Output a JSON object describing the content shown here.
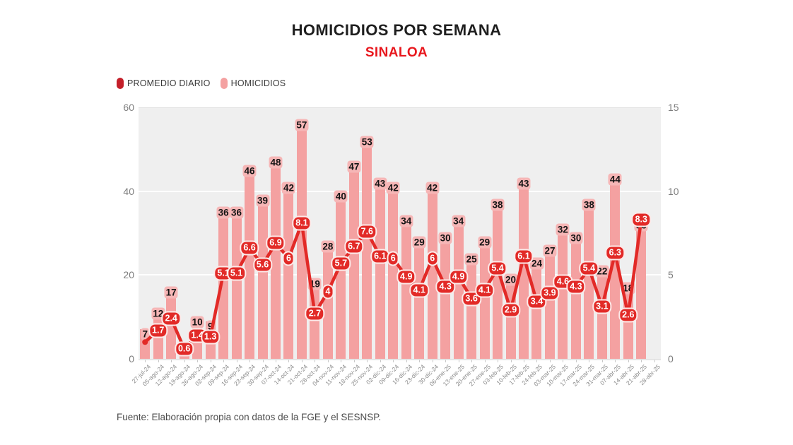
{
  "header": {
    "title": "HOMICIDIOS POR SEMANA",
    "subtitle": "SINALOA"
  },
  "legend": {
    "items": [
      {
        "label": "PROMEDIO DIARIO",
        "color": "#c4202a"
      },
      {
        "label": "HOMICIDIOS",
        "color": "#f4a1a1"
      }
    ]
  },
  "footer": {
    "source": "Fuente: Elaboración propia con datos de la FGE y el SESNSP."
  },
  "colors": {
    "title": "#1f1f1f",
    "subtitle_red": "#e8171d",
    "bar_fill": "#f4a1a1",
    "bar_label_bg": "#f6b6b6",
    "line_red": "#e22a27",
    "plot_background": "#efefef",
    "gridline": "#ffffff",
    "axis_text": "#7d7d7d"
  },
  "chart_data": {
    "type": "bar+line",
    "title": "HOMICIDIOS POR SEMANA",
    "subtitle": "SINALOA",
    "categories": [
      "27-jul-24",
      "05-ago-24",
      "12-ago-24",
      "19-ago-24",
      "26-ago-24",
      "02-sep-24",
      "09-sep-24",
      "16-sep-24",
      "23-sep-24",
      "30-sep-24",
      "07-oct-24",
      "14-oct-24",
      "21-oct-24",
      "28-oct-24",
      "04-nov-24",
      "11-nov-24",
      "18-nov-24",
      "25-nov-24",
      "02-dic-24",
      "09-dic-24",
      "16-dic-24",
      "23-dic-24",
      "30-dic-24",
      "06-ene-25",
      "13-ene-25",
      "20-ene-25",
      "27-ene-25",
      "03-feb-25",
      "10-feb-25",
      "17-feb-25",
      "24-feb-25",
      "03-mar-25",
      "10-mar-25",
      "17-mar-25",
      "24-mar-25",
      "31-mar-25",
      "07-abr-25",
      "14-abr-25",
      "21-abr-25",
      "28-abr-25"
    ],
    "series": [
      {
        "name": "HOMICIDIOS",
        "type": "bar",
        "axis": "left",
        "color": "#f4a1a1",
        "values": [
          7,
          12,
          17,
          4,
          10,
          9,
          36,
          36,
          46,
          39,
          48,
          42,
          57,
          19,
          28,
          40,
          47,
          53,
          43,
          42,
          34,
          29,
          42,
          30,
          34,
          25,
          29,
          38,
          20,
          43,
          24,
          27,
          32,
          30,
          38,
          22,
          44,
          18,
          33,
          null
        ],
        "labels": [
          "7",
          "12",
          "17",
          "",
          "10",
          "9",
          "36",
          "36",
          "46",
          "39",
          "48",
          "42",
          "57",
          "19",
          "28",
          "40",
          "47",
          "53",
          "43",
          "42",
          "34",
          "29",
          "42",
          "30",
          "34",
          "25",
          "29",
          "38",
          "20",
          "43",
          "24",
          "27",
          "32",
          "30",
          "38",
          "22",
          "44",
          "18",
          "33",
          ""
        ]
      },
      {
        "name": "PROMEDIO DIARIO",
        "type": "line",
        "axis": "right",
        "color": "#e22a27",
        "values": [
          1,
          1.7,
          2.4,
          0.6,
          1.4,
          1.3,
          5.1,
          5.1,
          6.6,
          5.6,
          6.9,
          6,
          8.1,
          2.7,
          4,
          5.7,
          6.7,
          7.6,
          6.1,
          6,
          4.9,
          4.1,
          6,
          4.3,
          4.9,
          3.6,
          4.1,
          5.4,
          2.9,
          6.1,
          3.4,
          3.9,
          4.6,
          4.3,
          5.4,
          3.1,
          6.3,
          2.6,
          8.3,
          null
        ],
        "labels": [
          "",
          "1.7",
          "2.4",
          "0.6",
          "1.4",
          "1.3",
          "5.1",
          "5.1",
          "6.6",
          "5.6",
          "6.9",
          "6",
          "8.1",
          "2.7",
          "4",
          "5.7",
          "6.7",
          "7.6",
          "6.1",
          "6",
          "4.9",
          "4.1",
          "6",
          "4.3",
          "4.9",
          "3.6",
          "4.1",
          "5.4",
          "2.9",
          "6.1",
          "3.4",
          "3.9",
          "4.6",
          "4.3",
          "5.4",
          "3.1",
          "6.3",
          "2.6",
          "8.3",
          ""
        ]
      }
    ],
    "left_axis": {
      "ticks": [
        "60",
        "40",
        "20",
        "0"
      ],
      "range": [
        0,
        60
      ]
    },
    "right_axis": {
      "ticks": [
        "15",
        "10",
        "5",
        "0"
      ],
      "range": [
        0,
        15
      ]
    },
    "grid": true,
    "legend_position": "top-left"
  }
}
